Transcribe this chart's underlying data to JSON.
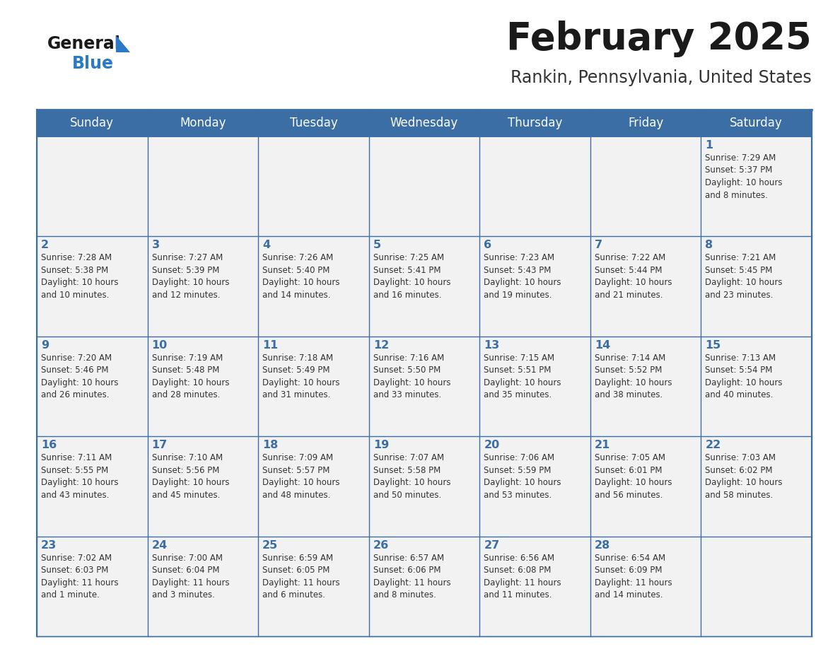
{
  "title": "February 2025",
  "subtitle": "Rankin, Pennsylvania, United States",
  "days_of_week": [
    "Sunday",
    "Monday",
    "Tuesday",
    "Wednesday",
    "Thursday",
    "Friday",
    "Saturday"
  ],
  "header_bg": "#3a6ea5",
  "header_text_color": "#ffffff",
  "cell_bg": "#f2f2f2",
  "cell_text_color": "#333333",
  "day_num_color": "#3a6ea5",
  "border_color": "#3a6ea5",
  "logo_general_color": "#1a1a1a",
  "logo_blue_color": "#2a7ac7",
  "title_color": "#1a1a1a",
  "subtitle_color": "#333333",
  "weeks": [
    [
      {
        "day": null,
        "text": ""
      },
      {
        "day": null,
        "text": ""
      },
      {
        "day": null,
        "text": ""
      },
      {
        "day": null,
        "text": ""
      },
      {
        "day": null,
        "text": ""
      },
      {
        "day": null,
        "text": ""
      },
      {
        "day": 1,
        "text": "Sunrise: 7:29 AM\nSunset: 5:37 PM\nDaylight: 10 hours\nand 8 minutes."
      }
    ],
    [
      {
        "day": 2,
        "text": "Sunrise: 7:28 AM\nSunset: 5:38 PM\nDaylight: 10 hours\nand 10 minutes."
      },
      {
        "day": 3,
        "text": "Sunrise: 7:27 AM\nSunset: 5:39 PM\nDaylight: 10 hours\nand 12 minutes."
      },
      {
        "day": 4,
        "text": "Sunrise: 7:26 AM\nSunset: 5:40 PM\nDaylight: 10 hours\nand 14 minutes."
      },
      {
        "day": 5,
        "text": "Sunrise: 7:25 AM\nSunset: 5:41 PM\nDaylight: 10 hours\nand 16 minutes."
      },
      {
        "day": 6,
        "text": "Sunrise: 7:23 AM\nSunset: 5:43 PM\nDaylight: 10 hours\nand 19 minutes."
      },
      {
        "day": 7,
        "text": "Sunrise: 7:22 AM\nSunset: 5:44 PM\nDaylight: 10 hours\nand 21 minutes."
      },
      {
        "day": 8,
        "text": "Sunrise: 7:21 AM\nSunset: 5:45 PM\nDaylight: 10 hours\nand 23 minutes."
      }
    ],
    [
      {
        "day": 9,
        "text": "Sunrise: 7:20 AM\nSunset: 5:46 PM\nDaylight: 10 hours\nand 26 minutes."
      },
      {
        "day": 10,
        "text": "Sunrise: 7:19 AM\nSunset: 5:48 PM\nDaylight: 10 hours\nand 28 minutes."
      },
      {
        "day": 11,
        "text": "Sunrise: 7:18 AM\nSunset: 5:49 PM\nDaylight: 10 hours\nand 31 minutes."
      },
      {
        "day": 12,
        "text": "Sunrise: 7:16 AM\nSunset: 5:50 PM\nDaylight: 10 hours\nand 33 minutes."
      },
      {
        "day": 13,
        "text": "Sunrise: 7:15 AM\nSunset: 5:51 PM\nDaylight: 10 hours\nand 35 minutes."
      },
      {
        "day": 14,
        "text": "Sunrise: 7:14 AM\nSunset: 5:52 PM\nDaylight: 10 hours\nand 38 minutes."
      },
      {
        "day": 15,
        "text": "Sunrise: 7:13 AM\nSunset: 5:54 PM\nDaylight: 10 hours\nand 40 minutes."
      }
    ],
    [
      {
        "day": 16,
        "text": "Sunrise: 7:11 AM\nSunset: 5:55 PM\nDaylight: 10 hours\nand 43 minutes."
      },
      {
        "day": 17,
        "text": "Sunrise: 7:10 AM\nSunset: 5:56 PM\nDaylight: 10 hours\nand 45 minutes."
      },
      {
        "day": 18,
        "text": "Sunrise: 7:09 AM\nSunset: 5:57 PM\nDaylight: 10 hours\nand 48 minutes."
      },
      {
        "day": 19,
        "text": "Sunrise: 7:07 AM\nSunset: 5:58 PM\nDaylight: 10 hours\nand 50 minutes."
      },
      {
        "day": 20,
        "text": "Sunrise: 7:06 AM\nSunset: 5:59 PM\nDaylight: 10 hours\nand 53 minutes."
      },
      {
        "day": 21,
        "text": "Sunrise: 7:05 AM\nSunset: 6:01 PM\nDaylight: 10 hours\nand 56 minutes."
      },
      {
        "day": 22,
        "text": "Sunrise: 7:03 AM\nSunset: 6:02 PM\nDaylight: 10 hours\nand 58 minutes."
      }
    ],
    [
      {
        "day": 23,
        "text": "Sunrise: 7:02 AM\nSunset: 6:03 PM\nDaylight: 11 hours\nand 1 minute."
      },
      {
        "day": 24,
        "text": "Sunrise: 7:00 AM\nSunset: 6:04 PM\nDaylight: 11 hours\nand 3 minutes."
      },
      {
        "day": 25,
        "text": "Sunrise: 6:59 AM\nSunset: 6:05 PM\nDaylight: 11 hours\nand 6 minutes."
      },
      {
        "day": 26,
        "text": "Sunrise: 6:57 AM\nSunset: 6:06 PM\nDaylight: 11 hours\nand 8 minutes."
      },
      {
        "day": 27,
        "text": "Sunrise: 6:56 AM\nSunset: 6:08 PM\nDaylight: 11 hours\nand 11 minutes."
      },
      {
        "day": 28,
        "text": "Sunrise: 6:54 AM\nSunset: 6:09 PM\nDaylight: 11 hours\nand 14 minutes."
      },
      {
        "day": null,
        "text": ""
      }
    ]
  ]
}
